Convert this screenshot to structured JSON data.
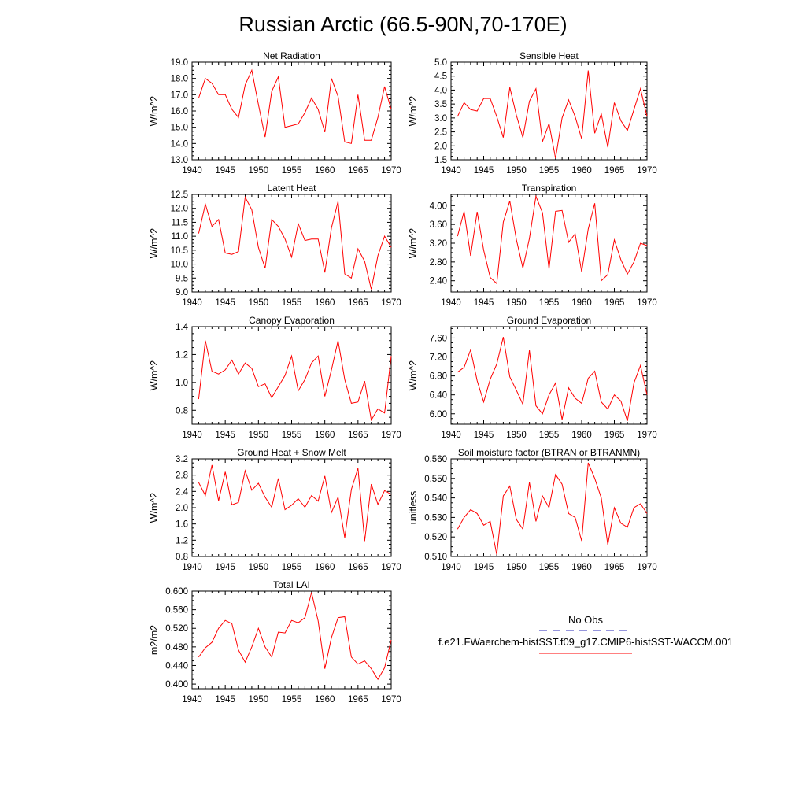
{
  "figure": {
    "title": "Russian Arctic (66.5-90N,70-170E)",
    "legend": {
      "obs_label": "No Obs",
      "model_label": "f.e21.FWaerchem-histSST.f09_g17.CMIP6-histSST-WACCM.001",
      "obs_color": "#2b2bb8",
      "model_color": "#ff0000"
    }
  },
  "chart_data": [
    {
      "type": "line",
      "title": "Net Radiation",
      "ylabel": "W/m^2",
      "xlim": [
        1940,
        1970
      ],
      "ylim": [
        13.0,
        19.0
      ],
      "x_ticks": [
        1940,
        1945,
        1950,
        1955,
        1960,
        1965,
        1970
      ],
      "y_ticks": [
        "13.0",
        "14.0",
        "15.0",
        "16.0",
        "17.0",
        "18.0",
        "19.0"
      ],
      "grid": false,
      "series": [
        {
          "color": "#ff0000",
          "x": [
            1941,
            1942,
            1943,
            1944,
            1945,
            1946,
            1947,
            1948,
            1949,
            1950,
            1951,
            1952,
            1953,
            1954,
            1955,
            1956,
            1957,
            1958,
            1959,
            1960,
            1961,
            1962,
            1963,
            1964,
            1965,
            1966,
            1967,
            1968,
            1969,
            1970
          ],
          "y": [
            16.8,
            18.0,
            17.7,
            17.0,
            17.0,
            16.1,
            15.6,
            17.6,
            18.5,
            16.4,
            14.4,
            17.2,
            18.1,
            15.0,
            15.1,
            15.2,
            15.9,
            16.8,
            16.1,
            14.7,
            18.0,
            16.9,
            14.1,
            14.0,
            17.0,
            14.2,
            14.2,
            15.6,
            17.5,
            16.1
          ]
        }
      ]
    },
    {
      "type": "line",
      "title": "Sensible Heat",
      "ylabel": "W/m^2",
      "xlim": [
        1940,
        1970
      ],
      "ylim": [
        1.5,
        5.0
      ],
      "x_ticks": [
        1940,
        1945,
        1950,
        1955,
        1960,
        1965,
        1970
      ],
      "y_ticks": [
        "1.5",
        "2.0",
        "2.5",
        "3.0",
        "3.5",
        "4.0",
        "4.5",
        "5.0"
      ],
      "grid": false,
      "series": [
        {
          "color": "#ff0000",
          "x": [
            1941,
            1942,
            1943,
            1944,
            1945,
            1946,
            1947,
            1948,
            1949,
            1950,
            1951,
            1952,
            1953,
            1954,
            1955,
            1956,
            1957,
            1958,
            1959,
            1960,
            1961,
            1962,
            1963,
            1964,
            1965,
            1966,
            1967,
            1968,
            1969,
            1970
          ],
          "y": [
            3.05,
            3.55,
            3.3,
            3.25,
            3.7,
            3.7,
            3.05,
            2.3,
            4.1,
            3.1,
            2.3,
            3.6,
            4.05,
            2.15,
            2.8,
            1.55,
            3.0,
            3.65,
            3.05,
            2.25,
            4.7,
            2.45,
            3.15,
            1.95,
            3.55,
            2.9,
            2.55,
            3.3,
            4.05,
            3.05
          ]
        }
      ]
    },
    {
      "type": "line",
      "title": "Latent Heat",
      "ylabel": "W/m^2",
      "xlim": [
        1940,
        1970
      ],
      "ylim": [
        9.0,
        12.5
      ],
      "x_ticks": [
        1940,
        1945,
        1950,
        1955,
        1960,
        1965,
        1970
      ],
      "y_ticks": [
        "9.0",
        "9.5",
        "10.0",
        "10.5",
        "11.0",
        "11.5",
        "12.0",
        "12.5"
      ],
      "grid": false,
      "series": [
        {
          "color": "#ff0000",
          "x": [
            1941,
            1942,
            1943,
            1944,
            1945,
            1946,
            1947,
            1948,
            1949,
            1950,
            1951,
            1952,
            1953,
            1954,
            1955,
            1956,
            1957,
            1958,
            1959,
            1960,
            1961,
            1962,
            1963,
            1964,
            1965,
            1966,
            1967,
            1968,
            1969,
            1970
          ],
          "y": [
            11.1,
            12.15,
            11.35,
            11.6,
            10.4,
            10.35,
            10.45,
            12.4,
            11.95,
            10.6,
            9.85,
            11.6,
            11.35,
            10.9,
            10.25,
            11.45,
            10.85,
            10.9,
            10.9,
            9.7,
            11.3,
            12.25,
            9.65,
            9.5,
            10.55,
            10.1,
            9.1,
            10.3,
            11.0,
            10.6
          ]
        }
      ]
    },
    {
      "type": "line",
      "title": "Transpiration",
      "ylabel": "W/m^2",
      "xlim": [
        1940,
        1970
      ],
      "ylim": [
        2.16,
        4.24
      ],
      "x_ticks": [
        1940,
        1945,
        1950,
        1955,
        1960,
        1965,
        1970
      ],
      "y_ticks": [
        "2.40",
        "2.80",
        "3.20",
        "3.60",
        "4.00"
      ],
      "grid": false,
      "series": [
        {
          "color": "#ff0000",
          "x": [
            1941,
            1942,
            1943,
            1944,
            1945,
            1946,
            1947,
            1948,
            1949,
            1950,
            1951,
            1952,
            1953,
            1954,
            1955,
            1956,
            1957,
            1958,
            1959,
            1960,
            1961,
            1962,
            1963,
            1964,
            1965,
            1966,
            1967,
            1968,
            1969,
            1970
          ],
          "y": [
            3.35,
            3.88,
            2.93,
            3.87,
            3.05,
            2.47,
            2.34,
            3.65,
            4.1,
            3.28,
            2.67,
            3.3,
            4.2,
            3.85,
            2.65,
            3.88,
            3.9,
            3.22,
            3.4,
            2.59,
            3.5,
            4.05,
            2.4,
            2.53,
            3.27,
            2.85,
            2.54,
            2.8,
            3.2,
            3.15
          ]
        }
      ]
    },
    {
      "type": "line",
      "title": "Canopy Evaporation",
      "ylabel": "W/m^2",
      "xlim": [
        1940,
        1970
      ],
      "ylim": [
        0.7,
        1.4
      ],
      "x_ticks": [
        1940,
        1945,
        1950,
        1955,
        1960,
        1965,
        1970
      ],
      "y_ticks": [
        "0.8",
        "1.0",
        "1.2",
        "1.4"
      ],
      "grid": false,
      "series": [
        {
          "color": "#ff0000",
          "x": [
            1941,
            1942,
            1943,
            1944,
            1945,
            1946,
            1947,
            1948,
            1949,
            1950,
            1951,
            1952,
            1953,
            1954,
            1955,
            1956,
            1957,
            1958,
            1959,
            1960,
            1961,
            1962,
            1963,
            1964,
            1965,
            1966,
            1967,
            1968,
            1969,
            1970
          ],
          "y": [
            0.88,
            1.3,
            1.08,
            1.06,
            1.09,
            1.16,
            1.06,
            1.14,
            1.1,
            0.97,
            0.99,
            0.89,
            0.97,
            1.05,
            1.19,
            0.94,
            1.02,
            1.14,
            1.19,
            0.9,
            1.09,
            1.3,
            1.02,
            0.85,
            0.86,
            1.01,
            0.73,
            0.81,
            0.78,
            1.19
          ]
        }
      ]
    },
    {
      "type": "line",
      "title": "Ground Evaporation",
      "ylabel": "W/m^2",
      "xlim": [
        1940,
        1970
      ],
      "ylim": [
        5.78,
        7.84
      ],
      "x_ticks": [
        1940,
        1945,
        1950,
        1955,
        1960,
        1965,
        1970
      ],
      "y_ticks": [
        "6.00",
        "6.40",
        "6.80",
        "7.20",
        "7.60"
      ],
      "grid": false,
      "series": [
        {
          "color": "#ff0000",
          "x": [
            1941,
            1942,
            1943,
            1944,
            1945,
            1946,
            1947,
            1948,
            1949,
            1950,
            1951,
            1952,
            1953,
            1954,
            1955,
            1956,
            1957,
            1958,
            1959,
            1960,
            1961,
            1962,
            1963,
            1964,
            1965,
            1966,
            1967,
            1968,
            1969,
            1970
          ],
          "y": [
            6.88,
            6.98,
            7.35,
            6.7,
            6.25,
            6.73,
            7.05,
            7.62,
            6.78,
            6.5,
            6.2,
            7.34,
            6.17,
            6.0,
            6.4,
            6.65,
            5.88,
            6.55,
            6.33,
            6.22,
            6.75,
            6.9,
            6.25,
            6.1,
            6.4,
            6.27,
            5.85,
            6.65,
            7.02,
            6.4
          ]
        }
      ]
    },
    {
      "type": "line",
      "title": "Ground Heat + Snow Melt",
      "ylabel": "W/m^2",
      "xlim": [
        1940,
        1970
      ],
      "ylim": [
        0.8,
        3.2
      ],
      "x_ticks": [
        1940,
        1945,
        1950,
        1955,
        1960,
        1965,
        1970
      ],
      "y_ticks": [
        "0.8",
        "1.2",
        "1.6",
        "2.0",
        "2.4",
        "2.8",
        "3.2"
      ],
      "grid": false,
      "series": [
        {
          "color": "#ff0000",
          "x": [
            1941,
            1942,
            1943,
            1944,
            1945,
            1946,
            1947,
            1948,
            1949,
            1950,
            1951,
            1952,
            1953,
            1954,
            1955,
            1956,
            1957,
            1958,
            1959,
            1960,
            1961,
            1962,
            1963,
            1964,
            1965,
            1966,
            1967,
            1968,
            1969,
            1970
          ],
          "y": [
            2.62,
            2.3,
            3.05,
            2.17,
            2.88,
            2.07,
            2.13,
            2.91,
            2.43,
            2.6,
            2.26,
            2.01,
            2.72,
            1.95,
            2.06,
            2.22,
            2.01,
            2.3,
            2.16,
            2.78,
            1.88,
            2.26,
            1.26,
            2.45,
            2.97,
            1.18,
            2.58,
            2.08,
            2.42,
            2.33
          ]
        }
      ]
    },
    {
      "type": "line",
      "title": "Soil moisture factor (BTRAN or BTRANMN)",
      "ylabel": "unitless",
      "xlim": [
        1940,
        1970
      ],
      "ylim": [
        0.51,
        0.56
      ],
      "x_ticks": [
        1940,
        1945,
        1950,
        1955,
        1960,
        1965,
        1970
      ],
      "y_ticks": [
        "0.510",
        "0.520",
        "0.530",
        "0.540",
        "0.550",
        "0.560"
      ],
      "grid": false,
      "series": [
        {
          "color": "#ff0000",
          "x": [
            1941,
            1942,
            1943,
            1944,
            1945,
            1946,
            1947,
            1948,
            1949,
            1950,
            1951,
            1952,
            1953,
            1954,
            1955,
            1956,
            1957,
            1958,
            1959,
            1960,
            1961,
            1962,
            1963,
            1964,
            1965,
            1966,
            1967,
            1968,
            1969,
            1970
          ],
          "y": [
            0.524,
            0.53,
            0.534,
            0.532,
            0.526,
            0.528,
            0.511,
            0.541,
            0.546,
            0.529,
            0.524,
            0.548,
            0.528,
            0.541,
            0.535,
            0.552,
            0.547,
            0.532,
            0.53,
            0.518,
            0.558,
            0.55,
            0.54,
            0.516,
            0.535,
            0.527,
            0.525,
            0.535,
            0.537,
            0.532
          ]
        }
      ]
    },
    {
      "type": "line",
      "title": "Total LAI",
      "ylabel": "m2/m2",
      "xlim": [
        1940,
        1970
      ],
      "ylim": [
        0.39,
        0.6
      ],
      "x_ticks": [
        1940,
        1945,
        1950,
        1955,
        1960,
        1965,
        1970
      ],
      "y_ticks": [
        "0.400",
        "0.440",
        "0.480",
        "0.520",
        "0.560",
        "0.600"
      ],
      "grid": false,
      "series": [
        {
          "color": "#ff0000",
          "x": [
            1941,
            1942,
            1943,
            1944,
            1945,
            1946,
            1947,
            1948,
            1949,
            1950,
            1951,
            1952,
            1953,
            1954,
            1955,
            1956,
            1957,
            1958,
            1959,
            1960,
            1961,
            1962,
            1963,
            1964,
            1965,
            1966,
            1967,
            1968,
            1969,
            1970
          ],
          "y": [
            0.458,
            0.478,
            0.49,
            0.52,
            0.537,
            0.53,
            0.473,
            0.447,
            0.48,
            0.52,
            0.48,
            0.458,
            0.512,
            0.51,
            0.537,
            0.532,
            0.543,
            0.597,
            0.536,
            0.433,
            0.5,
            0.543,
            0.545,
            0.458,
            0.443,
            0.45,
            0.433,
            0.41,
            0.435,
            0.495
          ]
        }
      ]
    }
  ]
}
